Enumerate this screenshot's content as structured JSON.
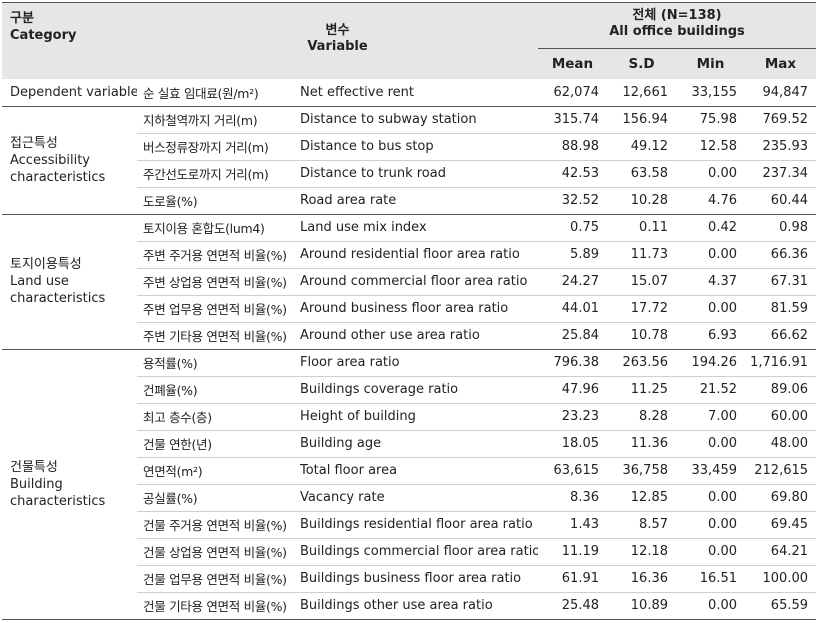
{
  "header": {
    "category_kr": "구분",
    "category_en": "Category",
    "variable_kr": "변수",
    "variable_en": "Variable",
    "all_kr": "전체 (N=138)",
    "all_en": "All office buildings",
    "stats": [
      "Mean",
      "S.D",
      "Min",
      "Max"
    ]
  },
  "dependent": {
    "category": "Dependent variable",
    "kr": "순 실효 임대료(원/m²)",
    "en": "Net effective rent",
    "values": [
      "62,074",
      "12,661",
      "33,155",
      "94,847"
    ]
  },
  "groups": [
    {
      "category_kr": "접근특성",
      "category_en": "Accessibility characteristics",
      "rows": [
        {
          "kr": "지하철역까지 거리(m)",
          "en": "Distance to subway station",
          "values": [
            "315.74",
            "156.94",
            "75.98",
            "769.52"
          ]
        },
        {
          "kr": "버스정류장까지 거리(m)",
          "en": "Distance to bus stop",
          "values": [
            "88.98",
            "49.12",
            "12.58",
            "235.93"
          ]
        },
        {
          "kr": "주간선도로까지 거리(m)",
          "en": "Distance to trunk road",
          "values": [
            "42.53",
            "63.58",
            "0.00",
            "237.34"
          ]
        },
        {
          "kr": "도로율(%)",
          "en": "Road area rate",
          "values": [
            "32.52",
            "10.28",
            "4.76",
            "60.44"
          ]
        }
      ]
    },
    {
      "category_kr": "토지이용특성",
      "category_en": "Land use characteristics",
      "rows": [
        {
          "kr": "토지이용 혼합도(lum4)",
          "en": "Land use mix index",
          "values": [
            "0.75",
            "0.11",
            "0.42",
            "0.98"
          ]
        },
        {
          "kr": "주변 주거용 연면적 비율(%)",
          "en": "Around residential floor area ratio",
          "values": [
            "5.89",
            "11.73",
            "0.00",
            "66.36"
          ]
        },
        {
          "kr": "주변 상업용 연면적 비율(%)",
          "en": "Around commercial floor area ratio",
          "values": [
            "24.27",
            "15.07",
            "4.37",
            "67.31"
          ]
        },
        {
          "kr": "주변 업무용 연면적 비율(%)",
          "en": "Around business floor area ratio",
          "values": [
            "44.01",
            "17.72",
            "0.00",
            "81.59"
          ]
        },
        {
          "kr": "주변 기타용 연면적 비율(%)",
          "en": "Around  other use area ratio",
          "values": [
            "25.84",
            "10.78",
            "6.93",
            "66.62"
          ]
        }
      ]
    },
    {
      "category_kr": "건물특성",
      "category_en": "Building characteristics",
      "rows": [
        {
          "kr": "용적률(%)",
          "en": "Floor area ratio",
          "values": [
            "796.38",
            "263.56",
            "194.26",
            "1,716.91"
          ]
        },
        {
          "kr": "건폐율(%)",
          "en": "Buildings coverage ratio",
          "values": [
            "47.96",
            "11.25",
            "21.52",
            "89.06"
          ]
        },
        {
          "kr": "최고 층수(층)",
          "en": "Height of building",
          "values": [
            "23.23",
            "8.28",
            "7.00",
            "60.00"
          ]
        },
        {
          "kr": "건물 연한(년)",
          "en": "Building age",
          "values": [
            "18.05",
            "11.36",
            "0.00",
            "48.00"
          ]
        },
        {
          "kr": "연면적(m²)",
          "en": "Total floor area",
          "values": [
            "63,615",
            "36,758",
            "33,459",
            "212,615"
          ]
        },
        {
          "kr": "공실률(%)",
          "en": "Vacancy rate",
          "values": [
            "8.36",
            "12.85",
            "0.00",
            "69.80"
          ]
        },
        {
          "kr": "건물 주거용 연면적 비율(%)",
          "en": "Buildings residential floor area ratio",
          "values": [
            "1.43",
            "8.57",
            "0.00",
            "69.45"
          ]
        },
        {
          "kr": "건물 상업용 연면적 비율(%)",
          "en": "Buildings commercial floor area ratio",
          "values": [
            "11.19",
            "12.18",
            "0.00",
            "64.21"
          ]
        },
        {
          "kr": "건물 업무용 연면적 비율(%)",
          "en": "Buildings business floor area ratio",
          "values": [
            "61.91",
            "16.36",
            "16.51",
            "100.00"
          ]
        },
        {
          "kr": "건물 기타용 연면적 비율(%)",
          "en": "Buildings other use area ratio",
          "values": [
            "25.48",
            "10.89",
            "0.00",
            "65.59"
          ]
        }
      ]
    }
  ]
}
